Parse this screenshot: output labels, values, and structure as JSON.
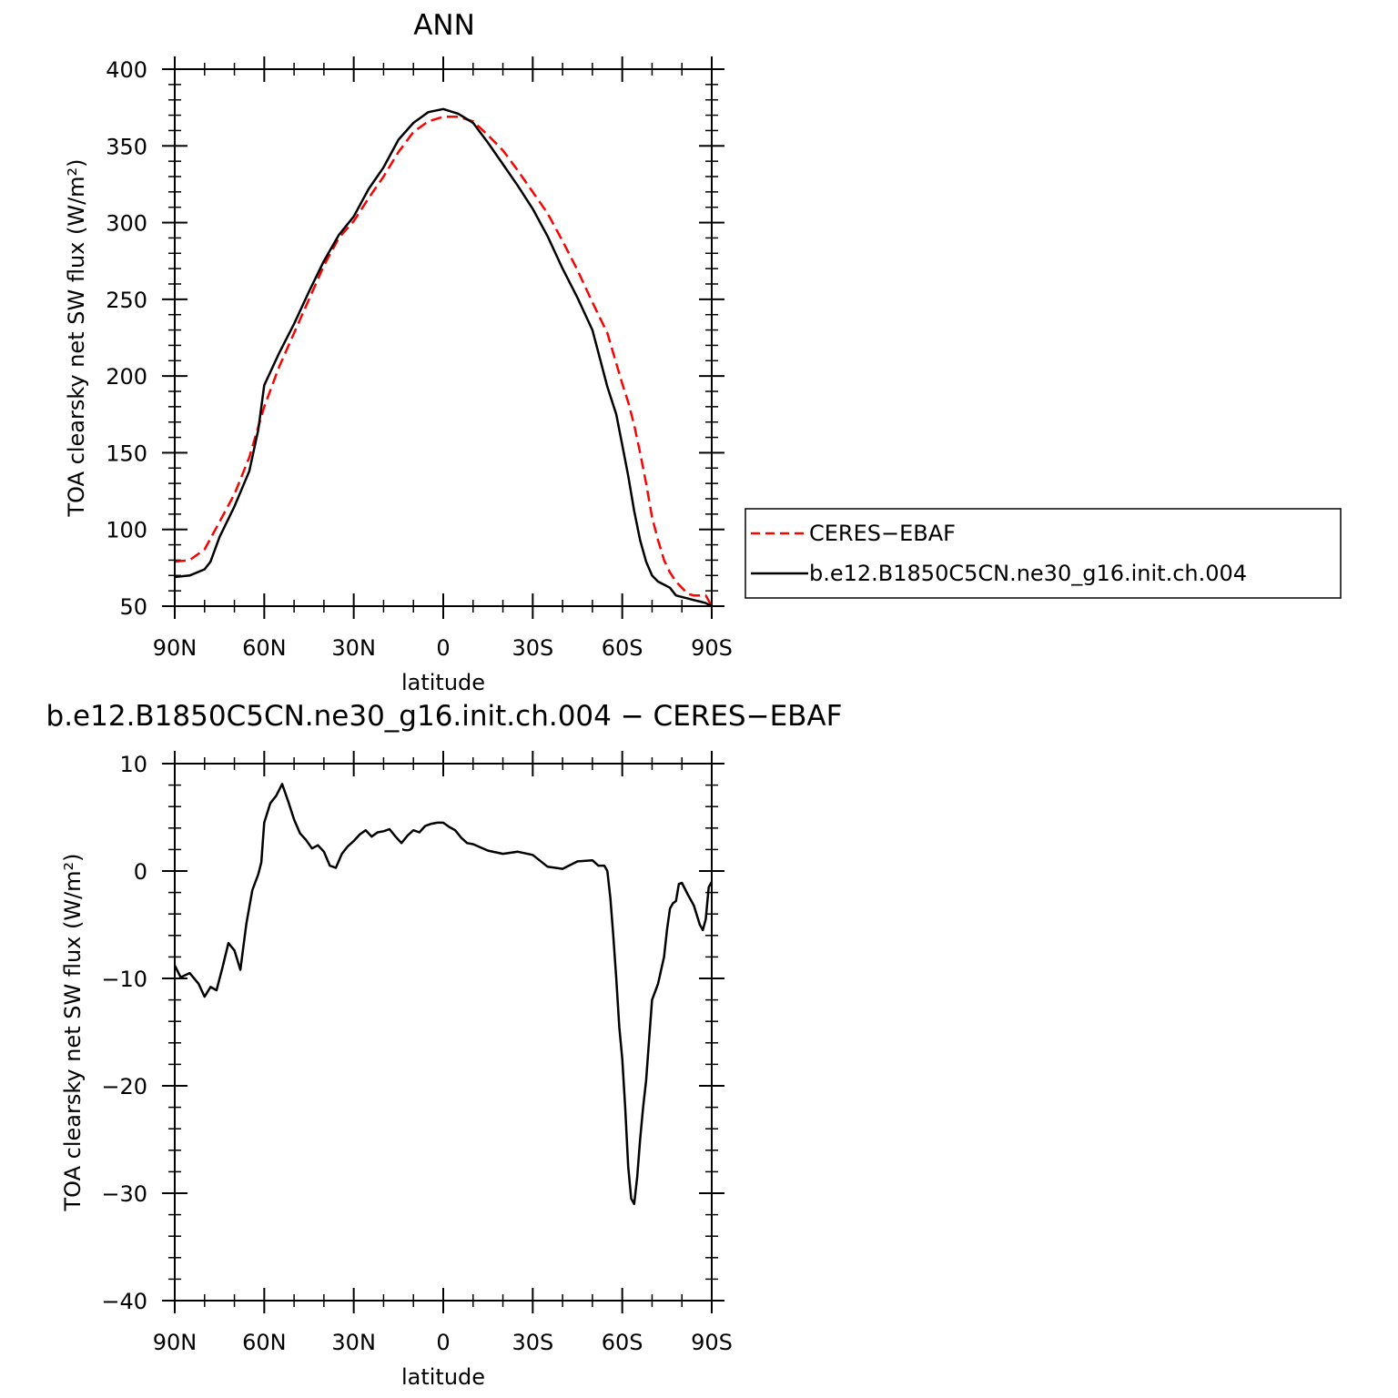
{
  "chart_data": [
    {
      "type": "line",
      "title": "ANN",
      "xlabel": "latitude",
      "ylabel": "TOA clearsky net SW flux (W/m²)",
      "x_ticks": [
        "90N",
        "60N",
        "30N",
        "0",
        "30S",
        "60S",
        "90S"
      ],
      "y_ticks": [
        "50",
        "100",
        "150",
        "200",
        "250",
        "300",
        "350",
        "400"
      ],
      "xlim": [
        90,
        -90
      ],
      "ylim": [
        50,
        400
      ],
      "legend_position": "right",
      "series": [
        {
          "name": "CERES−EBAF",
          "color": "#ff0000",
          "dash": true,
          "x": [
            90,
            85,
            80,
            75,
            70,
            65,
            60,
            55,
            50,
            45,
            40,
            35,
            30,
            25,
            20,
            15,
            10,
            5,
            0,
            -5,
            -10,
            -15,
            -20,
            -25,
            -30,
            -35,
            -40,
            -45,
            -50,
            -55,
            -60,
            -62,
            -64,
            -66,
            -68,
            -70,
            -72,
            -74,
            -76,
            -78,
            -80,
            -82,
            -84,
            -86,
            -88,
            -90
          ],
          "y": [
            79,
            80,
            87,
            105,
            123,
            147,
            180,
            206,
            228,
            250,
            272,
            290,
            301,
            316,
            330,
            346,
            359,
            366,
            369,
            369,
            366,
            357,
            347,
            334,
            320,
            306,
            288,
            269,
            248,
            228,
            195,
            183,
            168,
            150,
            130,
            108,
            93,
            80,
            72,
            66,
            62,
            58,
            57,
            57,
            57,
            50
          ]
        },
        {
          "name": "b.e12.B1850C5CN.ne30_g16.init.ch.004",
          "color": "#000000",
          "dash": false,
          "x": [
            90,
            85,
            80,
            78,
            75,
            70,
            65,
            62,
            60,
            55,
            50,
            45,
            40,
            35,
            30,
            25,
            20,
            15,
            10,
            5,
            0,
            -5,
            -10,
            -15,
            -20,
            -25,
            -30,
            -35,
            -40,
            -45,
            -50,
            -55,
            -58,
            -60,
            -62,
            -64,
            -66,
            -68,
            -70,
            -72,
            -74,
            -76,
            -78,
            -80,
            -82,
            -84,
            -86,
            -88,
            -90
          ],
          "y": [
            69,
            70,
            74,
            79,
            95,
            115,
            138,
            165,
            194,
            215,
            234,
            255,
            275,
            292,
            304,
            322,
            336,
            354,
            365,
            372,
            374,
            371,
            365,
            352,
            338,
            324,
            309,
            291,
            270,
            251,
            230,
            193,
            175,
            155,
            135,
            112,
            93,
            79,
            70,
            66,
            64,
            62,
            57,
            56,
            55,
            54,
            53,
            52,
            50
          ]
        }
      ]
    },
    {
      "type": "line",
      "title": "b.e12.B1850C5CN.ne30_g16.init.ch.004 − CERES−EBAF",
      "xlabel": "latitude",
      "ylabel": "TOA clearsky net SW flux (W/m²)",
      "x_ticks": [
        "90N",
        "60N",
        "30N",
        "0",
        "30S",
        "60S",
        "90S"
      ],
      "y_ticks": [
        "10",
        "0",
        "−10",
        "−20",
        "−30",
        "−40"
      ],
      "xlim": [
        90,
        -90
      ],
      "ylim": [
        -40,
        10
      ],
      "series": [
        {
          "color": "#000000",
          "x": [
            90,
            88,
            85,
            82,
            80,
            78,
            76,
            74,
            72,
            70,
            68,
            66,
            64,
            62,
            61,
            60,
            58,
            56,
            54,
            52,
            50,
            48,
            46,
            44,
            42,
            40,
            38,
            36,
            34,
            32,
            30,
            28,
            26,
            24,
            22,
            20,
            18,
            16,
            14,
            12,
            10,
            8,
            6,
            4,
            2,
            0,
            -2,
            -4,
            -6,
            -8,
            -10,
            -15,
            -20,
            -25,
            -30,
            -35,
            -40,
            -45,
            -50,
            -52,
            -54,
            -55,
            -56,
            -57,
            -58,
            -59,
            -60,
            -61,
            -62,
            -63,
            -64,
            -65,
            -66,
            -67,
            -68,
            -70,
            -72,
            -74,
            -75,
            -76,
            -77,
            -78,
            -79,
            -80,
            -82,
            -84,
            -86,
            -87,
            -88,
            -89,
            -90
          ],
          "y": [
            -8.8,
            -9.9,
            -9.5,
            -10.5,
            -11.7,
            -10.8,
            -11.1,
            -9.0,
            -6.7,
            -7.4,
            -9.2,
            -4.9,
            -1.8,
            -0.3,
            0.8,
            4.5,
            6.3,
            7.0,
            8.1,
            6.5,
            4.8,
            3.5,
            2.9,
            2.1,
            2.4,
            1.8,
            0.5,
            0.3,
            1.6,
            2.3,
            2.8,
            3.4,
            3.8,
            3.2,
            3.6,
            3.7,
            3.9,
            3.2,
            2.6,
            3.3,
            3.8,
            3.6,
            4.2,
            4.4,
            4.5,
            4.5,
            4.1,
            3.8,
            3.1,
            2.6,
            2.5,
            1.9,
            1.6,
            1.8,
            1.5,
            0.4,
            0.2,
            0.9,
            1.0,
            0.5,
            0.5,
            0.0,
            -2.5,
            -6.0,
            -10.0,
            -14.5,
            -17.5,
            -22.0,
            -27.5,
            -30.5,
            -31.0,
            -28.5,
            -25.0,
            -22.0,
            -19.5,
            -12.0,
            -10.5,
            -8.0,
            -5.5,
            -3.5,
            -3.0,
            -2.8,
            -1.2,
            -1.1,
            -2.2,
            -3.2,
            -5.0,
            -5.5,
            -4.5,
            -1.5,
            -1.0
          ]
        }
      ]
    }
  ]
}
